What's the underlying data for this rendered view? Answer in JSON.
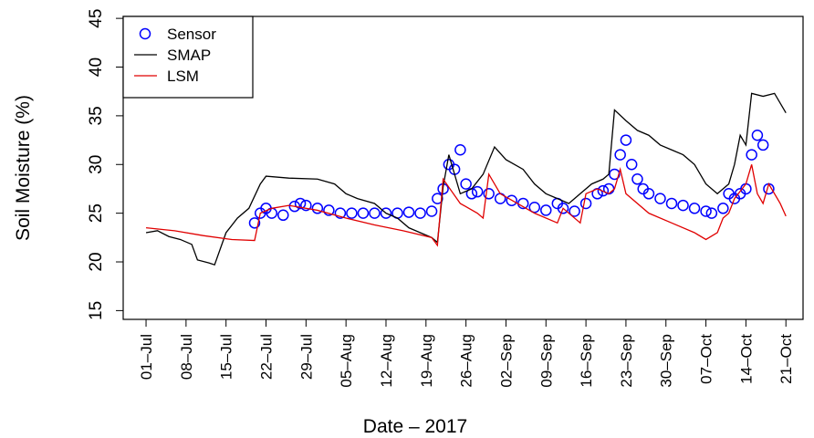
{
  "chart_data": {
    "type": "line",
    "xlabel": "Date – 2017",
    "ylabel": "Soil Moisture (%)",
    "xlim": [
      "2017-06-27",
      "2017-10-24"
    ],
    "ylim": [
      14.1,
      45.2
    ],
    "yticks": [
      15,
      20,
      25,
      30,
      35,
      40,
      45
    ],
    "xticks": [
      {
        "value": "2017-07-01",
        "label": "01–Jul"
      },
      {
        "value": "2017-07-08",
        "label": "08–Jul"
      },
      {
        "value": "2017-07-15",
        "label": "15–Jul"
      },
      {
        "value": "2017-07-22",
        "label": "22–Jul"
      },
      {
        "value": "2017-07-29",
        "label": "29–Jul"
      },
      {
        "value": "2017-08-05",
        "label": "05–Aug"
      },
      {
        "value": "2017-08-12",
        "label": "12–Aug"
      },
      {
        "value": "2017-08-19",
        "label": "19–Aug"
      },
      {
        "value": "2017-08-26",
        "label": "26–Aug"
      },
      {
        "value": "2017-09-02",
        "label": "02–Sep"
      },
      {
        "value": "2017-09-09",
        "label": "09–Sep"
      },
      {
        "value": "2017-09-16",
        "label": "16–Sep"
      },
      {
        "value": "2017-09-23",
        "label": "23–Sep"
      },
      {
        "value": "2017-09-30",
        "label": "30–Sep"
      },
      {
        "value": "2017-10-07",
        "label": "07–Oct"
      },
      {
        "value": "2017-10-14",
        "label": "14–Oct"
      },
      {
        "value": "2017-10-21",
        "label": "21–Oct"
      }
    ],
    "legend": "top-left",
    "series": [
      {
        "name": "Sensor",
        "color": "#0000ff",
        "style": "points",
        "x": [
          "2017-07-20",
          "2017-07-21",
          "2017-07-22",
          "2017-07-23",
          "2017-07-25",
          "2017-07-27",
          "2017-07-28",
          "2017-07-29",
          "2017-07-31",
          "2017-08-02",
          "2017-08-04",
          "2017-08-06",
          "2017-08-08",
          "2017-08-10",
          "2017-08-12",
          "2017-08-14",
          "2017-08-16",
          "2017-08-18",
          "2017-08-20",
          "2017-08-21",
          "2017-08-22",
          "2017-08-23",
          "2017-08-24",
          "2017-08-25",
          "2017-08-26",
          "2017-08-27",
          "2017-08-28",
          "2017-08-30",
          "2017-09-01",
          "2017-09-03",
          "2017-09-05",
          "2017-09-07",
          "2017-09-09",
          "2017-09-11",
          "2017-09-12",
          "2017-09-14",
          "2017-09-16",
          "2017-09-18",
          "2017-09-19",
          "2017-09-20",
          "2017-09-21",
          "2017-09-22",
          "2017-09-23",
          "2017-09-24",
          "2017-09-25",
          "2017-09-26",
          "2017-09-27",
          "2017-09-29",
          "2017-10-01",
          "2017-10-03",
          "2017-10-05",
          "2017-10-07",
          "2017-10-08",
          "2017-10-10",
          "2017-10-11",
          "2017-10-12",
          "2017-10-13",
          "2017-10-14",
          "2017-10-15",
          "2017-10-16",
          "2017-10-17",
          "2017-10-18"
        ],
        "values": [
          24.0,
          25.0,
          25.5,
          25.0,
          24.8,
          25.7,
          26.0,
          25.8,
          25.5,
          25.3,
          25.0,
          25.0,
          25.0,
          25.0,
          25.0,
          25.0,
          25.1,
          25.0,
          25.2,
          26.5,
          27.5,
          30.0,
          29.5,
          31.5,
          28.0,
          27.0,
          27.2,
          27.0,
          26.5,
          26.3,
          26.0,
          25.6,
          25.3,
          26.0,
          25.5,
          25.2,
          26.0,
          27.0,
          27.3,
          27.5,
          29.0,
          31.0,
          32.5,
          30.0,
          28.5,
          27.5,
          27.0,
          26.5,
          26.0,
          25.8,
          25.5,
          25.2,
          25.0,
          25.5,
          27.0,
          26.5,
          27.0,
          27.5,
          31.0,
          33.0,
          32.0,
          27.5
        ]
      },
      {
        "name": "SMAP",
        "color": "#000000",
        "style": "line",
        "x": [
          "2017-07-01",
          "2017-07-03",
          "2017-07-05",
          "2017-07-07",
          "2017-07-09",
          "2017-07-10",
          "2017-07-12",
          "2017-07-13",
          "2017-07-15",
          "2017-07-17",
          "2017-07-19",
          "2017-07-21",
          "2017-07-22",
          "2017-07-26",
          "2017-07-31",
          "2017-08-03",
          "2017-08-05",
          "2017-08-07",
          "2017-08-10",
          "2017-08-12",
          "2017-08-14",
          "2017-08-16",
          "2017-08-18",
          "2017-08-20",
          "2017-08-21",
          "2017-08-22",
          "2017-08-23",
          "2017-08-25",
          "2017-08-27",
          "2017-08-29",
          "2017-08-31",
          "2017-09-02",
          "2017-09-05",
          "2017-09-07",
          "2017-09-09",
          "2017-09-11",
          "2017-09-13",
          "2017-09-15",
          "2017-09-17",
          "2017-09-19",
          "2017-09-20",
          "2017-09-21",
          "2017-09-23",
          "2017-09-25",
          "2017-09-27",
          "2017-09-29",
          "2017-10-01",
          "2017-10-03",
          "2017-10-05",
          "2017-10-07",
          "2017-10-09",
          "2017-10-11",
          "2017-10-12",
          "2017-10-13",
          "2017-10-14",
          "2017-10-15",
          "2017-10-17",
          "2017-10-19",
          "2017-10-21"
        ],
        "values": [
          23.0,
          23.2,
          22.6,
          22.3,
          21.8,
          20.2,
          19.9,
          19.7,
          23.0,
          24.5,
          25.5,
          28.0,
          28.8,
          28.6,
          28.5,
          28.0,
          27.0,
          26.5,
          26.0,
          25.0,
          24.5,
          23.5,
          23.0,
          22.5,
          22.0,
          27.7,
          31.0,
          27.0,
          27.5,
          29.0,
          31.8,
          30.5,
          29.5,
          28.0,
          27.0,
          26.5,
          26.0,
          27.0,
          28.0,
          28.5,
          29.0,
          35.6,
          34.5,
          33.5,
          33.0,
          32.0,
          31.5,
          31.0,
          30.0,
          28.0,
          27.0,
          28.0,
          30.0,
          33.0,
          32.0,
          37.3,
          37.0,
          37.3,
          35.3
        ]
      },
      {
        "name": "LSM",
        "color": "#e00000",
        "style": "line",
        "x": [
          "2017-07-01",
          "2017-07-06",
          "2017-07-11",
          "2017-07-16",
          "2017-07-20",
          "2017-07-21",
          "2017-07-23",
          "2017-07-26",
          "2017-07-31",
          "2017-08-05",
          "2017-08-10",
          "2017-08-15",
          "2017-08-20",
          "2017-08-21",
          "2017-08-22",
          "2017-08-25",
          "2017-08-28",
          "2017-08-29",
          "2017-08-30",
          "2017-09-01",
          "2017-09-04",
          "2017-09-07",
          "2017-09-11",
          "2017-09-12",
          "2017-09-15",
          "2017-09-16",
          "2017-09-18",
          "2017-09-20",
          "2017-09-21",
          "2017-09-22",
          "2017-09-23",
          "2017-09-27",
          "2017-10-01",
          "2017-10-05",
          "2017-10-07",
          "2017-10-09",
          "2017-10-10",
          "2017-10-11",
          "2017-10-12",
          "2017-10-14",
          "2017-10-15",
          "2017-10-16",
          "2017-10-17",
          "2017-10-18",
          "2017-10-20",
          "2017-10-21"
        ],
        "values": [
          23.5,
          23.2,
          22.7,
          22.3,
          22.2,
          25.0,
          25.5,
          25.8,
          25.3,
          24.5,
          23.8,
          23.2,
          22.5,
          21.7,
          28.5,
          26.0,
          25.0,
          24.5,
          29.0,
          27.0,
          26.0,
          25.0,
          24.0,
          25.5,
          24.0,
          27.0,
          27.5,
          27.0,
          27.5,
          29.5,
          27.0,
          25.0,
          24.0,
          23.0,
          22.3,
          23.0,
          24.5,
          25.0,
          26.5,
          28.0,
          30.0,
          27.0,
          26.0,
          28.0,
          26.0,
          24.7
        ]
      }
    ]
  }
}
